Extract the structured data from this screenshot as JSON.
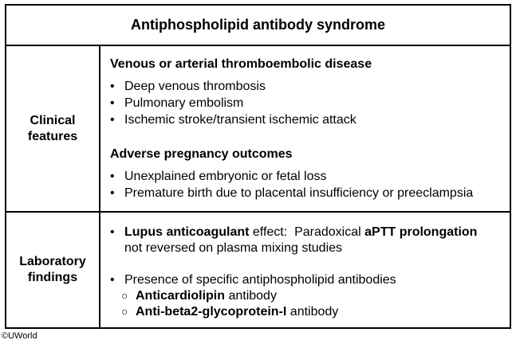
{
  "title": "Antiphospholipid antibody syndrome",
  "clinical": {
    "label_line1": "Clinical",
    "label_line2": "features",
    "heading1": "Venous or arterial thromboembolic disease",
    "items1": [
      "Deep venous thrombosis",
      "Pulmonary embolism",
      "Ischemic stroke/transient ischemic attack"
    ],
    "heading2": "Adverse pregnancy outcomes",
    "items2": [
      "Unexplained embryonic or fetal loss",
      "Premature birth due to placental insufficiency or preeclampsia"
    ]
  },
  "lab": {
    "label_line1": "Laboratory",
    "label_line2": "findings",
    "lupus_bold": "Lupus anticoagulant",
    "lupus_text": " effect:  Paradoxical ",
    "aptt_bold": "aPTT prolongation",
    "lupus_line2": "not reversed on plasma mixing studies",
    "presence_text": "Presence of specific antiphospholipid antibodies",
    "sub1_bold": "Anticardiolipin",
    "sub1_text": " antibody",
    "sub2_bold": "Anti-beta2-glycoprotein-I",
    "sub2_text": " antibody"
  },
  "copyright": "©UWorld"
}
